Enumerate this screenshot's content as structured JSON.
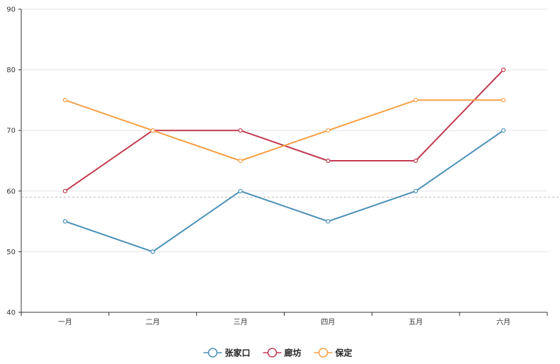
{
  "chart_data": {
    "type": "line",
    "categories": [
      "一月",
      "二月",
      "三月",
      "四月",
      "五月",
      "六月"
    ],
    "series": [
      {
        "name": "张家口",
        "values": [
          55,
          50,
          60,
          55,
          60,
          70
        ],
        "color": "#4a90b8"
      },
      {
        "name": "廊坊",
        "values": [
          60,
          70,
          70,
          65,
          65,
          80
        ],
        "color": "#c23a4f"
      },
      {
        "name": "保定",
        "values": [
          75,
          70,
          65,
          70,
          75,
          75
        ],
        "color": "#f5a046"
      }
    ],
    "yticks": [
      40,
      50,
      60,
      70,
      80,
      90
    ],
    "ylim": [
      40,
      90
    ],
    "reference_line": 59,
    "grid": true,
    "legend_position": "bottom-center",
    "title": "",
    "xlabel": "",
    "ylabel": ""
  }
}
